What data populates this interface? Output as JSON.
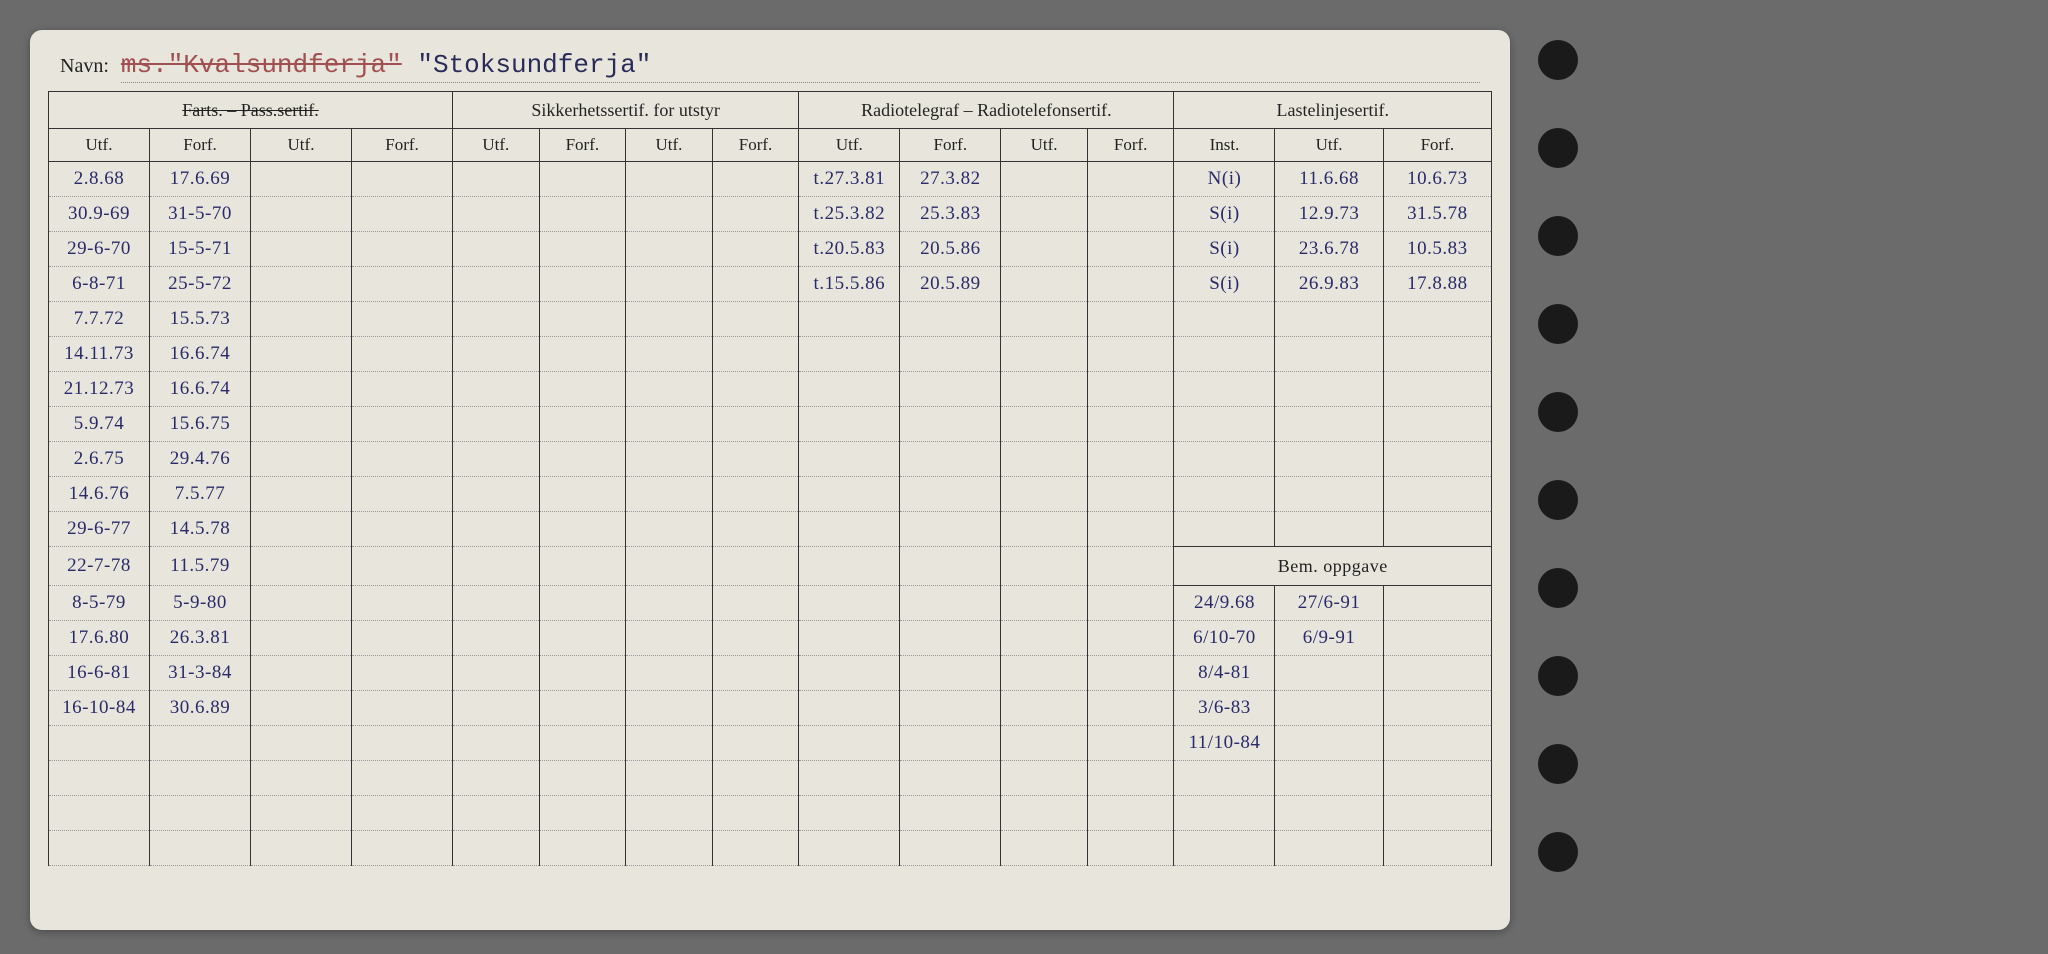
{
  "header": {
    "navn_label": "Navn:",
    "navn_struck": "ms.\"Kvalsundferja\"",
    "navn_current": "\"Stoksundferja\""
  },
  "groups": {
    "g1": "Farts. – Pass.sertif.",
    "g2": "Sikkerhetssertif. for utstyr",
    "g3": "Radiotelegraf – Radiotelefonsertif.",
    "g4": "Lastelinjesertif."
  },
  "sub": {
    "utf": "Utf.",
    "forf": "Forf.",
    "inst": "Inst."
  },
  "bem_label": "Bem. oppgave",
  "rows": [
    {
      "c1": "2.8.68",
      "c2": "17.6.69",
      "c9": "t.27.3.81",
      "c10": "27.3.82",
      "c13": "N(i)",
      "c14": "11.6.68",
      "c15": "10.6.73"
    },
    {
      "c1": "30.9-69",
      "c2": "31-5-70",
      "c9": "t.25.3.82",
      "c10": "25.3.83",
      "c13": "S(i)",
      "c14": "12.9.73",
      "c15": "31.5.78"
    },
    {
      "c1": "29-6-70",
      "c2": "15-5-71",
      "c9": "t.20.5.83",
      "c10": "20.5.86",
      "c13": "S(i)",
      "c14": "23.6.78",
      "c15": "10.5.83"
    },
    {
      "c1": "6-8-71",
      "c2": "25-5-72",
      "c9": "t.15.5.86",
      "c10": "20.5.89",
      "c13": "S(i)",
      "c14": "26.9.83",
      "c15": "17.8.88"
    },
    {
      "c1": "7.7.72",
      "c2": "15.5.73"
    },
    {
      "c1": "14.11.73",
      "c2": "16.6.74"
    },
    {
      "c1": "21.12.73",
      "c2": "16.6.74"
    },
    {
      "c1": "5.9.74",
      "c2": "15.6.75"
    },
    {
      "c1": "2.6.75",
      "c2": "29.4.76"
    },
    {
      "c1": "14.6.76",
      "c2": "7.5.77"
    },
    {
      "c1": "29-6-77",
      "c2": "14.5.78"
    },
    {
      "c1": "22-7-78",
      "c2": "11.5.79"
    },
    {
      "c1": "8-5-79",
      "c2": "5-9-80",
      "b1": "24/9.68",
      "b2": "27/6-91"
    },
    {
      "c1": "17.6.80",
      "c2": "26.3.81",
      "b1": "6/10-70",
      "b2": "6/9-91"
    },
    {
      "c1": "16-6-81",
      "c2": "31-3-84",
      "b1": "8/4-81"
    },
    {
      "c1": "16-10-84",
      "c2": "30.6.89",
      "b1": "3/6-83"
    },
    {
      "b1": "11/10-84"
    },
    {},
    {},
    {}
  ]
}
